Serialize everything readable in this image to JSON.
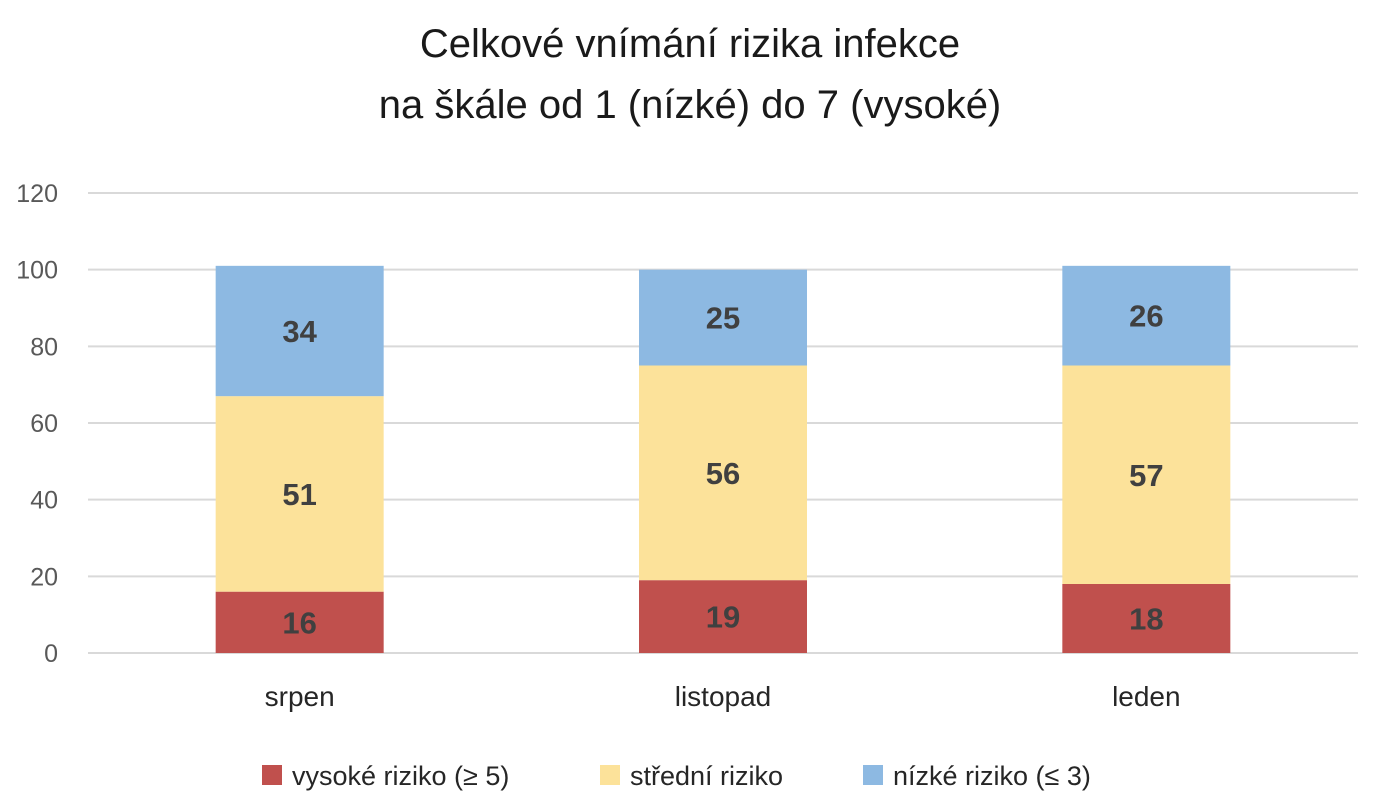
{
  "chart_data": {
    "type": "bar",
    "stacked": true,
    "title": [
      "Celkové vnímání rizika infekce",
      "na škále od 1 (nízké) do 7 (vysoké)"
    ],
    "categories": [
      "srpen",
      "listopad",
      "leden"
    ],
    "series": [
      {
        "name": "vysoké riziko (≥ 5)",
        "color": "#C0504D",
        "values": [
          16,
          19,
          18
        ]
      },
      {
        "name": "střední riziko",
        "color": "#FCE29A",
        "values": [
          51,
          56,
          57
        ]
      },
      {
        "name": "nízké riziko (≤ 3)",
        "color": "#8DB9E2",
        "values": [
          34,
          25,
          26
        ]
      }
    ],
    "ylim": [
      0,
      120
    ],
    "yticks": [
      0,
      20,
      40,
      60,
      80,
      100,
      120
    ],
    "grid": true,
    "legend": "bottom",
    "data_label_color": "#404040",
    "axis_text_color": "#595959",
    "title_color": "#1a1a1a",
    "grid_color": "#D9D9D9"
  }
}
